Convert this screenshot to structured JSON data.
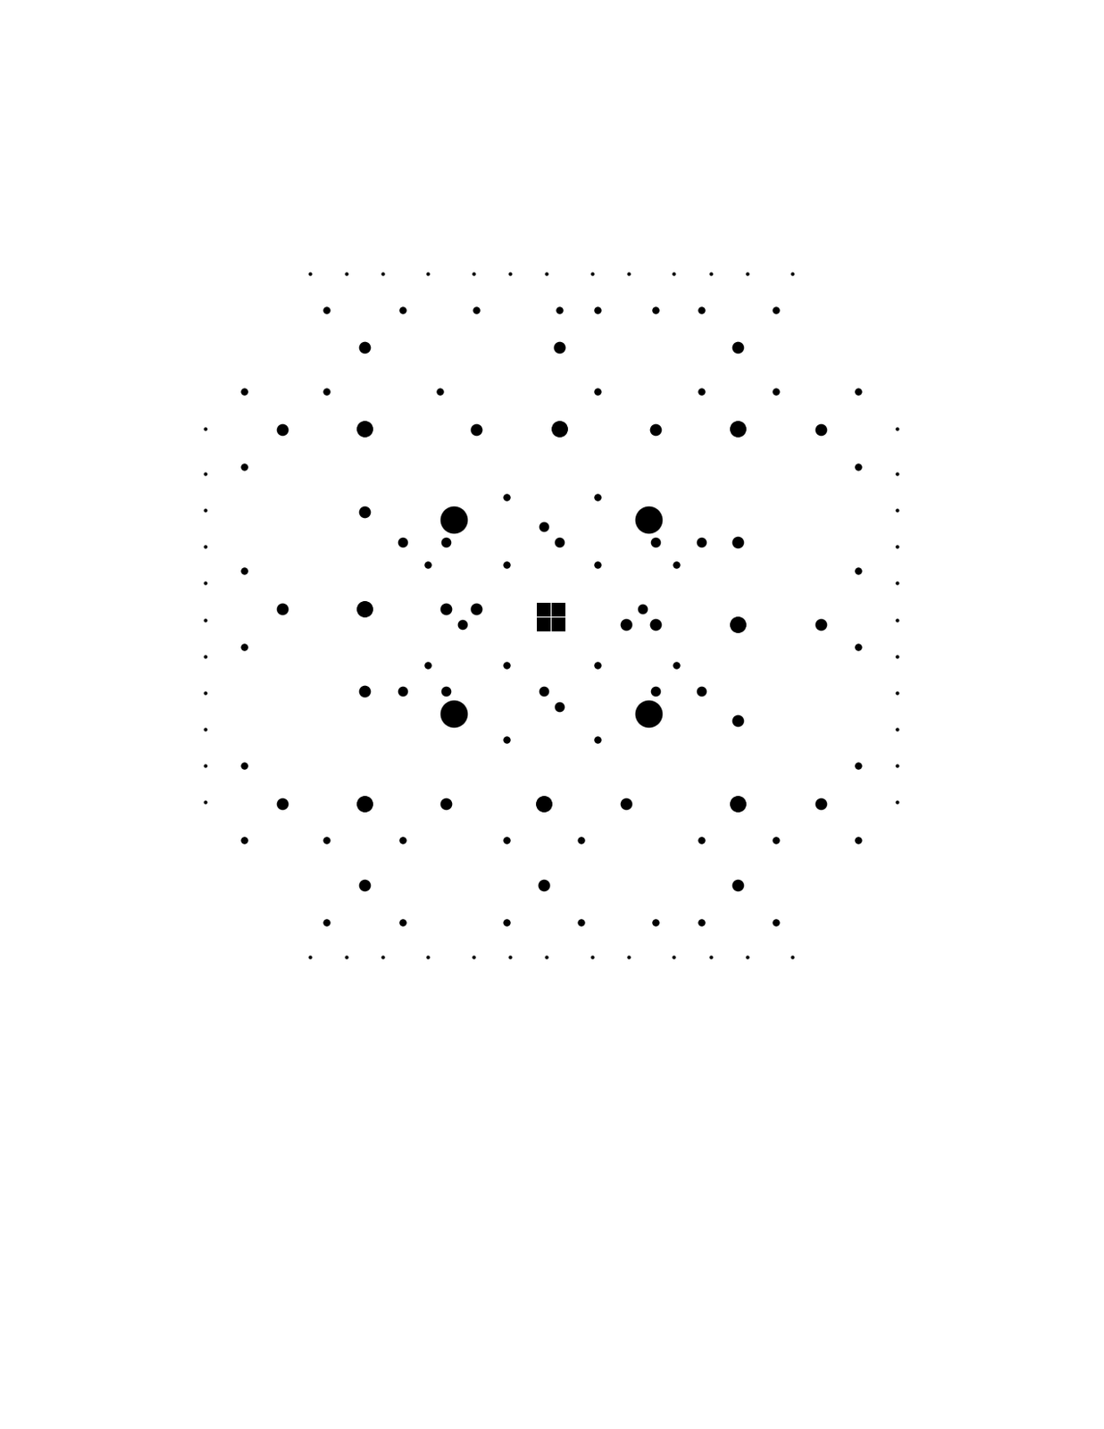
{
  "chart_data": {
    "type": "scatter",
    "tick_labels": false,
    "color": "#000000",
    "xlim": [
      0,
      1212
    ],
    "ylim": [
      1568,
      0
    ],
    "series": [
      {
        "marker": "o",
        "size": 30,
        "x": [
          498,
          712,
          498,
          712
        ],
        "y": [
          570,
          570,
          783,
          783
        ]
      },
      {
        "marker": "s",
        "size": 16,
        "x": [
          597,
          613,
          597,
          613
        ],
        "y": [
          669,
          669,
          685,
          685
        ]
      },
      {
        "marker": "o",
        "size": 18,
        "x": [
          400,
          614,
          810,
          400,
          810,
          400,
          597,
          810
        ],
        "y": [
          470,
          470,
          470,
          668,
          685,
          882,
          882,
          882
        ]
      },
      {
        "marker": "o",
        "size": 13,
        "x": [
          400,
          614,
          810,
          310,
          901,
          310,
          901,
          310,
          901,
          400,
          597,
          810,
          523,
          720,
          490,
          687,
          400,
          810,
          400,
          810,
          523,
          687,
          490,
          720
        ],
        "y": [
          381,
          381,
          381,
          471,
          471,
          668,
          685,
          882,
          882,
          971,
          971,
          971,
          471,
          471,
          882,
          882,
          562,
          595,
          758,
          791,
          668,
          685,
          668,
          685
        ]
      },
      {
        "marker": "o",
        "size": 11,
        "x": [
          597,
          614,
          597,
          614,
          508,
          705,
          490,
          720,
          490,
          720,
          442,
          770,
          442,
          770
        ],
        "y": [
          578,
          595,
          758,
          775,
          685,
          668,
          595,
          595,
          758,
          758,
          595,
          595,
          758,
          758
        ]
      },
      {
        "marker": "o",
        "size": 8,
        "x": [
          358,
          442,
          523,
          614,
          656,
          720,
          770,
          852,
          358,
          442,
          556,
          638,
          720,
          770,
          852,
          268,
          268,
          268,
          268,
          268,
          268,
          942,
          942,
          942,
          942,
          942,
          942,
          358,
          483,
          656,
          770,
          852,
          358,
          442,
          556,
          638,
          770,
          852,
          556,
          656,
          556,
          656,
          556,
          656,
          556,
          656,
          470,
          742,
          470,
          742
        ],
        "y": [
          340,
          340,
          340,
          340,
          340,
          340,
          340,
          340,
          1012,
          1012,
          1012,
          1012,
          1012,
          1012,
          1012,
          430,
          512,
          626,
          710,
          840,
          922,
          430,
          512,
          626,
          710,
          840,
          922,
          430,
          430,
          430,
          430,
          430,
          922,
          922,
          922,
          922,
          922,
          922,
          545,
          545,
          812,
          812,
          620,
          620,
          730,
          730,
          620,
          620,
          730,
          730
        ]
      },
      {
        "marker": "o",
        "size": 4,
        "x": [
          340,
          380,
          420,
          470,
          520,
          560,
          600,
          650,
          690,
          740,
          780,
          820,
          870,
          340,
          380,
          420,
          470,
          520,
          560,
          600,
          650,
          690,
          740,
          780,
          820,
          870,
          225,
          225,
          225,
          225,
          225,
          225,
          225,
          225,
          225,
          225,
          225,
          985,
          985,
          985,
          985,
          985,
          985,
          985,
          985,
          985,
          985,
          985
        ],
        "y": [
          300,
          300,
          300,
          300,
          300,
          300,
          300,
          300,
          300,
          300,
          300,
          300,
          300,
          1050,
          1050,
          1050,
          1050,
          1050,
          1050,
          1050,
          1050,
          1050,
          1050,
          1050,
          1050,
          1050,
          470,
          520,
          560,
          600,
          640,
          680,
          720,
          760,
          800,
          840,
          880,
          470,
          520,
          560,
          600,
          640,
          680,
          720,
          760,
          800,
          840,
          880
        ]
      }
    ]
  }
}
